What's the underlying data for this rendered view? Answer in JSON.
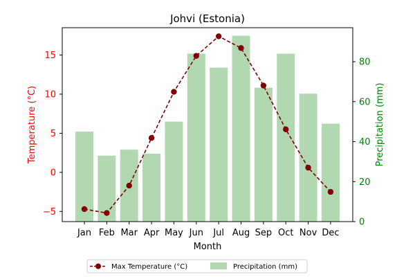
{
  "colors": {
    "temperature": "#800000",
    "temperature_axis": "#ff0000",
    "precipitation_bar": "#b2d8b2",
    "precipitation_axis": "#008000",
    "axis": "#000000"
  },
  "chart_data": {
    "type": "bar",
    "title": "Johvi (Estonia)",
    "xlabel": "Month",
    "categories": [
      "Jan",
      "Feb",
      "Mar",
      "Apr",
      "May",
      "Jun",
      "Jul",
      "Aug",
      "Sep",
      "Oct",
      "Nov",
      "Dec"
    ],
    "y_left": {
      "label": "Temperature (°C)",
      "range": [
        -6.3,
        18.5
      ],
      "ticks": [
        -5,
        0,
        5,
        10,
        15
      ]
    },
    "y_right": {
      "label": "Precipitation (mm)",
      "range": [
        0,
        97
      ],
      "ticks": [
        0,
        20,
        40,
        60,
        80
      ]
    },
    "series": [
      {
        "name": "Max Temperature (°C)",
        "type": "line",
        "axis": "left",
        "marker": "circle",
        "line_style": "dashed",
        "values": [
          -4.7,
          -5.2,
          -1.7,
          4.4,
          10.3,
          14.9,
          17.4,
          15.9,
          11.1,
          5.5,
          0.6,
          -2.5
        ]
      },
      {
        "name": "Precipitation (mm)",
        "type": "bar",
        "axis": "right",
        "values": [
          45,
          33,
          36,
          34,
          50,
          84,
          77,
          93,
          67,
          84,
          64,
          49
        ]
      }
    ],
    "legend": {
      "position": "bottom-center",
      "columns": 2
    }
  }
}
